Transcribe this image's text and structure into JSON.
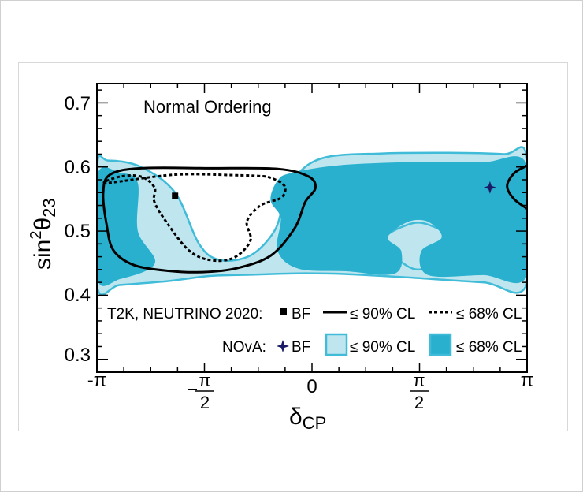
{
  "chart_data": {
    "type": "contour",
    "title": "Normal Ordering",
    "xlabel": "δCP",
    "ylabel": "sin²θ23",
    "xlim": [
      -3.14159,
      3.14159
    ],
    "ylim": [
      0.28,
      0.73
    ],
    "x_ticks": [
      {
        "value": -3.14159,
        "label": "-π"
      },
      {
        "value": -1.5708,
        "label": "π/2",
        "neg": true
      },
      {
        "value": 0,
        "label": "0"
      },
      {
        "value": 1.5708,
        "label": "π/2",
        "neg": false
      },
      {
        "value": 3.14159,
        "label": "π"
      }
    ],
    "y_ticks": [
      0.3,
      0.4,
      0.5,
      0.6,
      0.7
    ],
    "y_tick_labels": [
      "0.3",
      "0.4",
      "0.5",
      "0.6",
      "0.7"
    ],
    "colors": {
      "nova_90_fill": "#bfe6ef",
      "nova_90_edge": "#40bcd8",
      "nova_68_fill": "#29b0cf",
      "t2k_line": "#000000",
      "nova_bf_marker": "#1a1a66"
    },
    "best_fits": {
      "t2k": {
        "delta_cp": -2.0,
        "sin2_theta23": 0.555
      },
      "nova": {
        "delta_cp": 2.6,
        "sin2_theta23": 0.568
      }
    },
    "contours": {
      "nova_90_a": [
        [
          -2.98,
          0.61
        ],
        [
          -2.5,
          0.6
        ],
        [
          -2.0,
          0.56
        ],
        [
          -1.65,
          0.48
        ],
        [
          -1.35,
          0.455
        ],
        [
          -0.9,
          0.462
        ],
        [
          -0.55,
          0.5
        ],
        [
          -0.4,
          0.548
        ],
        [
          -0.2,
          0.59
        ],
        [
          0.2,
          0.615
        ],
        [
          1.0,
          0.621
        ],
        [
          2.0,
          0.622
        ],
        [
          2.8,
          0.62
        ],
        [
          3.14,
          0.615
        ],
        [
          3.14,
          0.418
        ],
        [
          2.5,
          0.42
        ],
        [
          1.5,
          0.427
        ],
        [
          0.5,
          0.433
        ],
        [
          -0.2,
          0.434
        ],
        [
          -0.9,
          0.432
        ],
        [
          -1.5,
          0.43
        ],
        [
          -2.1,
          0.422
        ],
        [
          -2.8,
          0.416
        ],
        [
          -3.14,
          0.414
        ],
        [
          -3.14,
          0.6
        ]
      ],
      "nova_90_b": [
        [
          1.05,
          0.485
        ],
        [
          1.4,
          0.445
        ],
        [
          1.7,
          0.445
        ],
        [
          2.05,
          0.485
        ],
        [
          1.7,
          0.51
        ],
        [
          1.4,
          0.51
        ]
      ],
      "nova_68_a": [
        [
          -0.3,
          0.59
        ],
        [
          0.4,
          0.602
        ],
        [
          1.5,
          0.607
        ],
        [
          2.5,
          0.607
        ],
        [
          3.14,
          0.602
        ],
        [
          3.14,
          0.432
        ],
        [
          2.5,
          0.432
        ],
        [
          1.7,
          0.432
        ],
        [
          1.6,
          0.468
        ],
        [
          1.9,
          0.49
        ],
        [
          1.7,
          0.515
        ],
        [
          1.4,
          0.515
        ],
        [
          1.1,
          0.49
        ],
        [
          1.3,
          0.468
        ],
        [
          1.2,
          0.434
        ],
        [
          0.5,
          0.438
        ],
        [
          -0.2,
          0.442
        ],
        [
          -0.5,
          0.47
        ],
        [
          -0.45,
          0.52
        ],
        [
          -0.6,
          0.548
        ],
        [
          -0.5,
          0.578
        ]
      ],
      "nova_68_b": [
        [
          -3.14,
          0.585
        ],
        [
          -2.8,
          0.59
        ],
        [
          -2.55,
          0.575
        ],
        [
          -2.55,
          0.5
        ],
        [
          -2.3,
          0.45
        ],
        [
          -2.8,
          0.426
        ],
        [
          -3.14,
          0.428
        ]
      ],
      "t2k_90_a": [
        [
          -2.95,
          0.588
        ],
        [
          -2.5,
          0.598
        ],
        [
          -1.5,
          0.598
        ],
        [
          -0.5,
          0.597
        ],
        [
          -0.05,
          0.585
        ],
        [
          0.05,
          0.567
        ],
        [
          -0.1,
          0.545
        ],
        [
          -0.25,
          0.505
        ],
        [
          -0.6,
          0.462
        ],
        [
          -1.1,
          0.442
        ],
        [
          -1.6,
          0.436
        ],
        [
          -2.1,
          0.438
        ],
        [
          -2.6,
          0.447
        ],
        [
          -2.9,
          0.47
        ],
        [
          -3.0,
          0.51
        ],
        [
          -3.05,
          0.56
        ]
      ],
      "t2k_90_b": [
        [
          3.14,
          0.602
        ],
        [
          2.95,
          0.59
        ],
        [
          2.85,
          0.57
        ],
        [
          2.95,
          0.55
        ],
        [
          3.14,
          0.535
        ]
      ],
      "t2k_68": [
        [
          -3.0,
          0.575
        ],
        [
          -2.8,
          0.585
        ],
        [
          -2.5,
          0.585
        ],
        [
          -2.3,
          0.568
        ],
        [
          -2.3,
          0.545
        ],
        [
          -2.1,
          0.51
        ],
        [
          -1.8,
          0.47
        ],
        [
          -1.5,
          0.455
        ],
        [
          -1.15,
          0.458
        ],
        [
          -0.9,
          0.485
        ],
        [
          -0.95,
          0.515
        ],
        [
          -0.75,
          0.54
        ],
        [
          -0.45,
          0.552
        ],
        [
          -0.4,
          0.57
        ],
        [
          -0.6,
          0.583
        ],
        [
          -0.8,
          0.586
        ],
        [
          -1.1,
          0.587
        ],
        [
          -2.0,
          0.588
        ]
      ]
    },
    "legend": {
      "t2k_label": "T2K, NEUTRINO 2020:",
      "nova_label": "NOvA:",
      "bf": "BF",
      "cl90": "≤ 90% CL",
      "cl68": "≤ 68% CL"
    }
  }
}
